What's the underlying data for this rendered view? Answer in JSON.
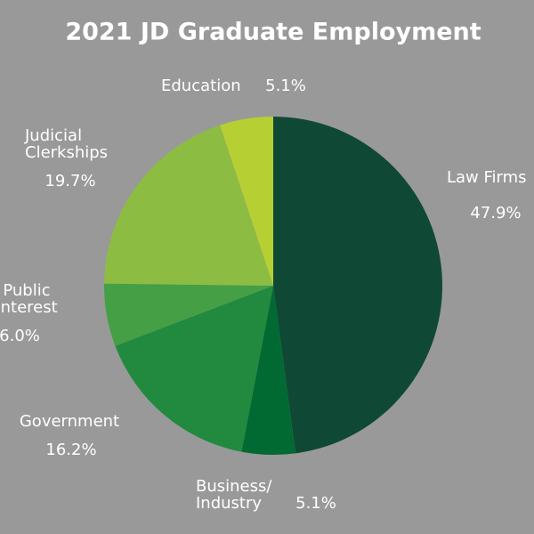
{
  "chart_data": {
    "type": "pie",
    "title": "2021 JD Graduate Employment",
    "categories": [
      [
        "Law Firms"
      ],
      [
        "Business/",
        "Industry"
      ],
      [
        "Government"
      ],
      [
        "Public",
        "Interest"
      ],
      [
        "Judicial",
        "Clerkships"
      ],
      [
        "Education"
      ]
    ],
    "values": [
      47.9,
      5.1,
      16.2,
      6.0,
      19.7,
      5.1
    ],
    "value_labels": [
      "47.9%",
      "5.1%",
      "16.2%",
      "6.0%",
      "19.7%",
      "5.1%"
    ],
    "colors": [
      "#0f4935",
      "#016a33",
      "#218a3e",
      "#449f45",
      "#8dbc43",
      "#b6cf33"
    ]
  }
}
